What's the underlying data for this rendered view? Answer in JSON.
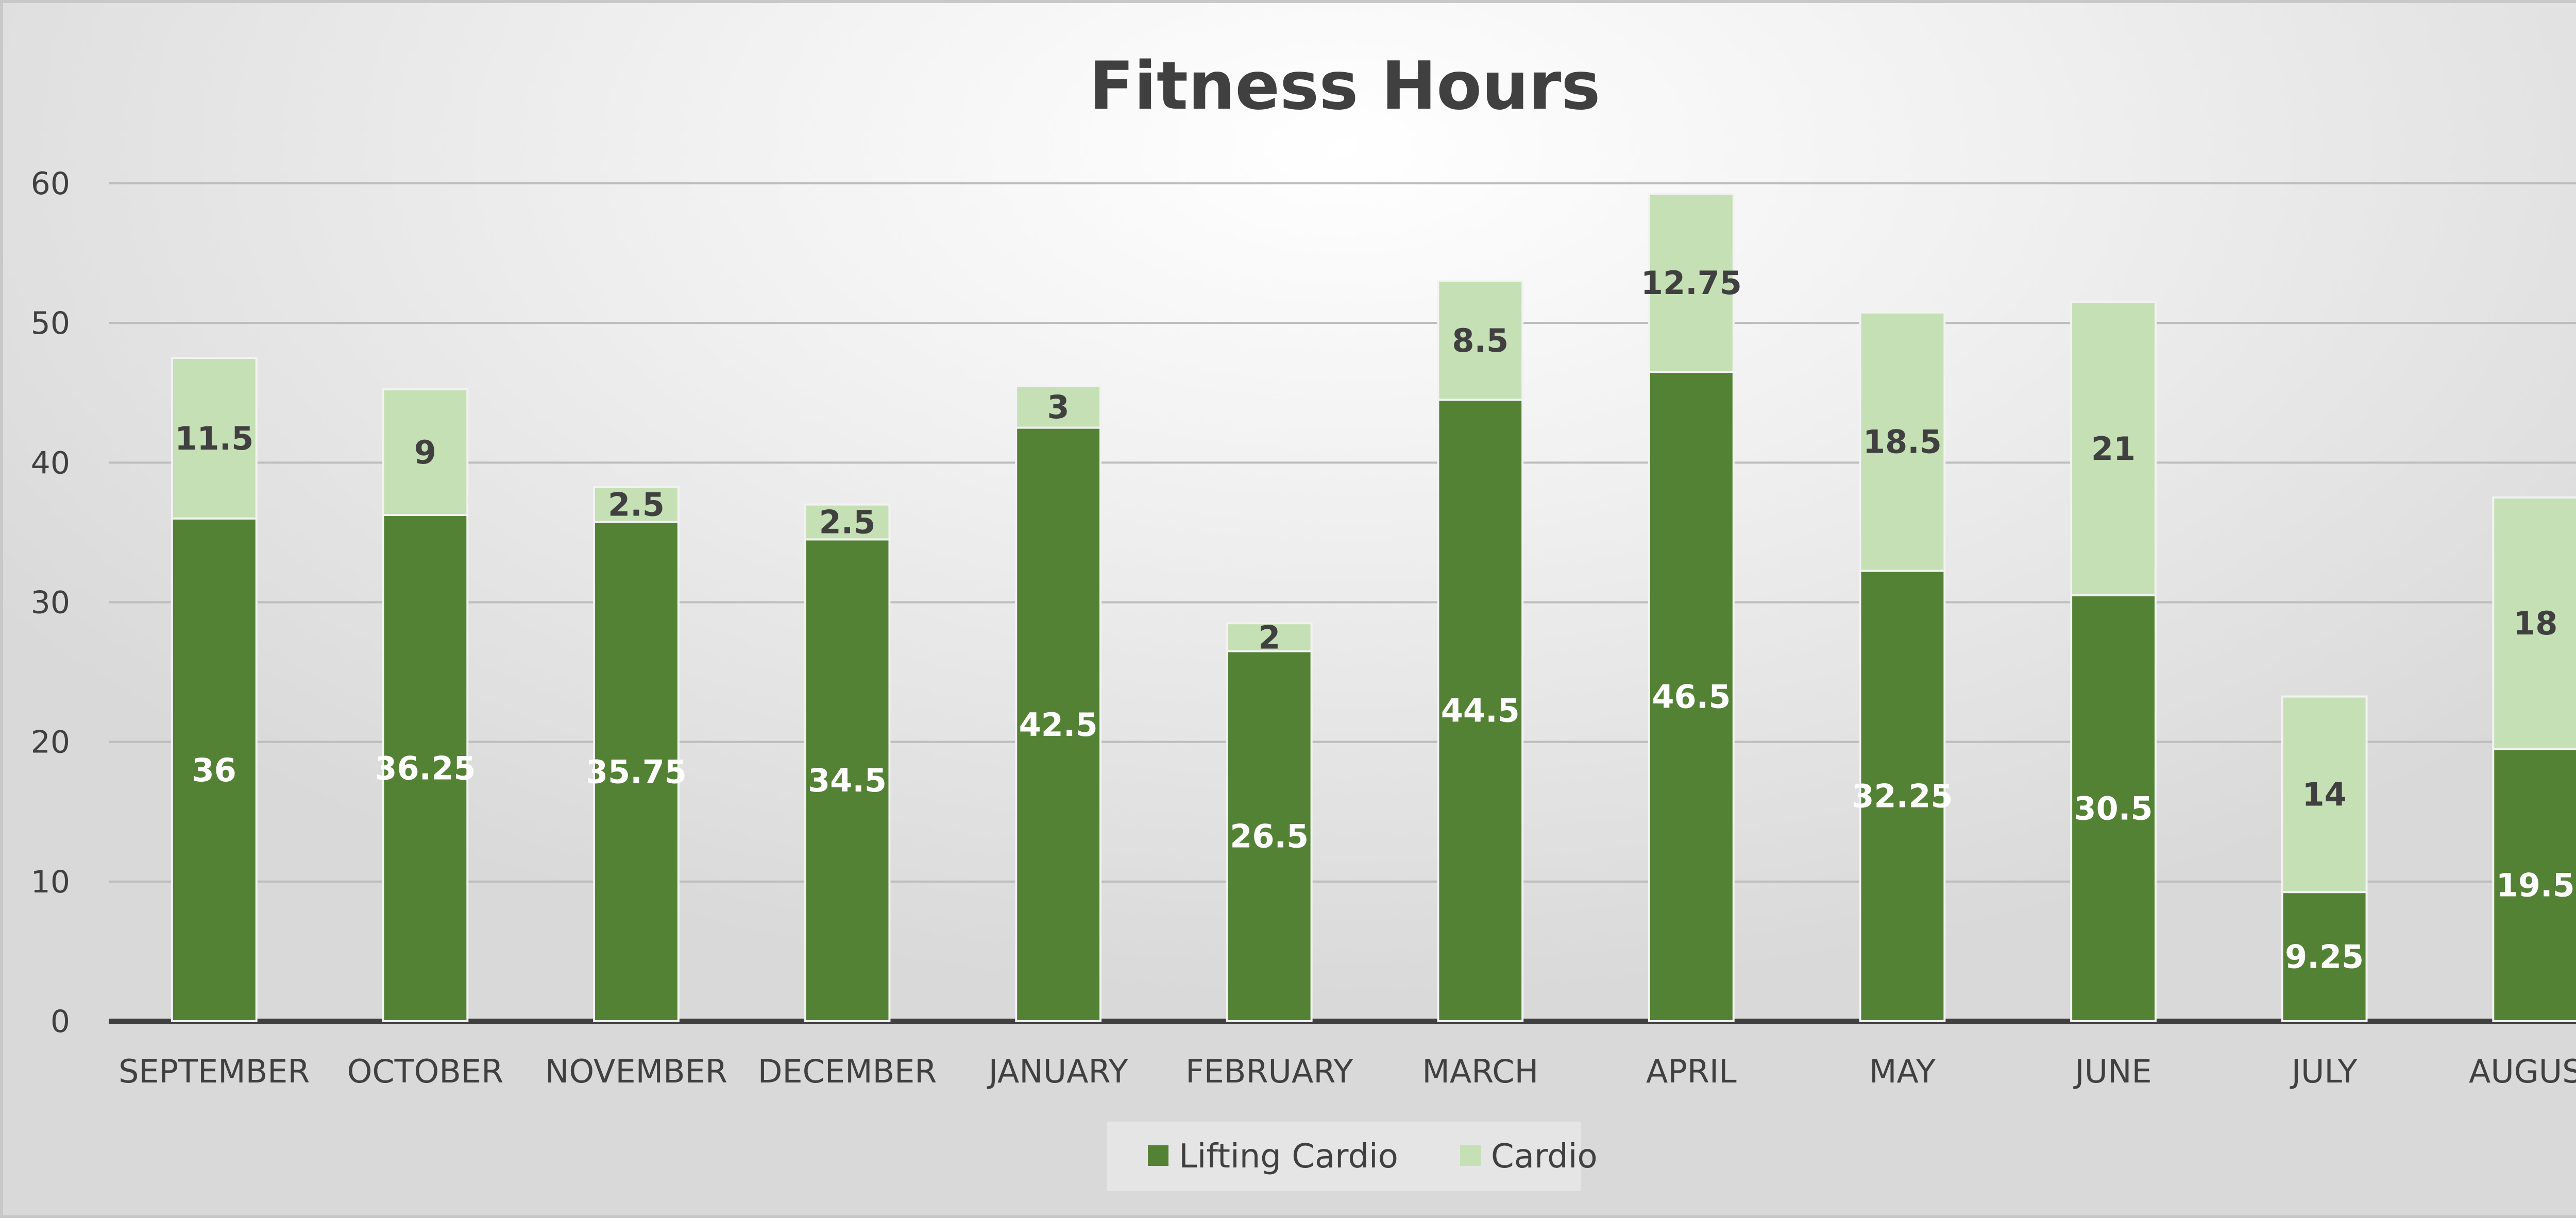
{
  "chart_data": {
    "type": "bar",
    "stacked": true,
    "title": "Fitness Hours",
    "xlabel": "",
    "ylabel": "",
    "ylim": [
      0,
      60
    ],
    "yticks": [
      0,
      10,
      20,
      30,
      40,
      50,
      60
    ],
    "grid": true,
    "legend_position": "bottom",
    "categories": [
      "SEPTEMBER",
      "OCTOBER",
      "NOVEMBER",
      "DECEMBER",
      "JANUARY",
      "FEBRUARY",
      "MARCH",
      "APRIL",
      "MAY",
      "JUNE",
      "JULY",
      "AUGUST"
    ],
    "series": [
      {
        "name": "Lifting Cardio",
        "color": "#548235",
        "values": [
          36,
          36.25,
          35.75,
          34.5,
          42.5,
          26.5,
          44.5,
          46.5,
          32.25,
          30.5,
          9.25,
          19.5
        ]
      },
      {
        "name": "Cardio",
        "color": "#c5e0b4",
        "values": [
          11.5,
          9,
          2.5,
          2.5,
          3,
          2,
          8.5,
          12.75,
          18.5,
          21,
          14,
          18
        ]
      }
    ]
  }
}
